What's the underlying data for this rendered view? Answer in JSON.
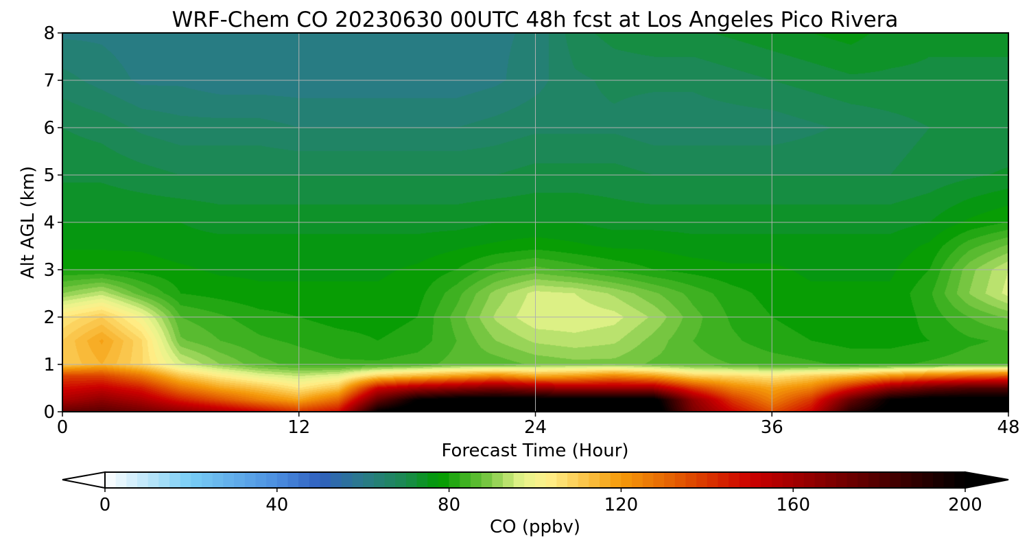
{
  "chart_data": {
    "type": "heatmap",
    "title": "WRF-Chem CO  20230630 00UTC 48h fcst at Los Angeles Pico Rivera",
    "xlabel": "Forecast Time (Hour)",
    "ylabel": "Alt AGL (km)",
    "xlim": [
      0,
      48
    ],
    "ylim": [
      0,
      8
    ],
    "xticks": [
      "0",
      "12",
      "24",
      "36",
      "48"
    ],
    "yticks": [
      "0",
      "1",
      "2",
      "3",
      "4",
      "5",
      "6",
      "7",
      "8"
    ],
    "grid": true,
    "colorbar": {
      "label": "CO  (ppbv)",
      "range": [
        0,
        200
      ],
      "ticks": [
        "0",
        "40",
        "80",
        "120",
        "160",
        "200"
      ],
      "extend": "both",
      "under_color": "#ffffff",
      "over_color": "#000000"
    },
    "colormap": [
      {
        "v": 0,
        "c": "#ffffff"
      },
      {
        "v": 20,
        "c": "#78cdf5"
      },
      {
        "v": 40,
        "c": "#4b8ee0"
      },
      {
        "v": 50,
        "c": "#3060bf"
      },
      {
        "v": 60,
        "c": "#2a7a8a"
      },
      {
        "v": 70,
        "c": "#1a8a4e"
      },
      {
        "v": 78,
        "c": "#009a00"
      },
      {
        "v": 88,
        "c": "#6cc23a"
      },
      {
        "v": 97,
        "c": "#e6f48c"
      },
      {
        "v": 103,
        "c": "#fff08a"
      },
      {
        "v": 120,
        "c": "#f59a0a"
      },
      {
        "v": 135,
        "c": "#e05000"
      },
      {
        "v": 150,
        "c": "#cc0000"
      },
      {
        "v": 170,
        "c": "#7a0000"
      },
      {
        "v": 200,
        "c": "#000000"
      }
    ],
    "x_hours": [
      0,
      2,
      4,
      6,
      8,
      10,
      12,
      14,
      16,
      18,
      20,
      22,
      24,
      26,
      28,
      30,
      32,
      34,
      36,
      38,
      40,
      42,
      44,
      46,
      48
    ],
    "z_km": [
      0,
      0.25,
      0.5,
      0.75,
      1,
      1.5,
      2,
      2.5,
      3,
      3.5,
      4,
      5,
      6,
      7,
      8
    ],
    "values_ppbv": [
      [
        175,
        178,
        172,
        165,
        158,
        150,
        140,
        148,
        200,
        210,
        210,
        210,
        210,
        210,
        210,
        210,
        170,
        150,
        135,
        150,
        190,
        205,
        210,
        210,
        210
      ],
      [
        158,
        165,
        158,
        145,
        135,
        125,
        118,
        130,
        175,
        200,
        205,
        205,
        205,
        205,
        205,
        205,
        165,
        140,
        125,
        140,
        175,
        200,
        205,
        205,
        205
      ],
      [
        148,
        152,
        145,
        128,
        118,
        112,
        105,
        112,
        150,
        160,
        165,
        170,
        165,
        160,
        160,
        160,
        140,
        125,
        118,
        125,
        145,
        165,
        175,
        180,
        180
      ],
      [
        138,
        138,
        128,
        112,
        104,
        98,
        95,
        98,
        110,
        115,
        120,
        125,
        118,
        120,
        125,
        120,
        110,
        108,
        105,
        110,
        115,
        122,
        128,
        132,
        135
      ],
      [
        110,
        115,
        108,
        96,
        90,
        86,
        84,
        83,
        83,
        84,
        86,
        86,
        88,
        89,
        89,
        87,
        86,
        85,
        84,
        83,
        82,
        82,
        83,
        84,
        84
      ],
      [
        110,
        118,
        108,
        88,
        85,
        83,
        82,
        81,
        80,
        81,
        85,
        90,
        93,
        94,
        93,
        89,
        85,
        83,
        81,
        80,
        79,
        79,
        80,
        82,
        83
      ],
      [
        105,
        110,
        100,
        85,
        83,
        81,
        80,
        79,
        79,
        80,
        86,
        93,
        97,
        97,
        96,
        92,
        86,
        82,
        80,
        79,
        78,
        78,
        81,
        85,
        88
      ],
      [
        90,
        94,
        86,
        80,
        79,
        78,
        78,
        78,
        78,
        79,
        84,
        91,
        96,
        95,
        92,
        88,
        84,
        81,
        79,
        78,
        78,
        78,
        82,
        90,
        96
      ],
      [
        80,
        80,
        79,
        78,
        77,
        77,
        77,
        77,
        77,
        78,
        80,
        84,
        86,
        84,
        82,
        80,
        79,
        78,
        78,
        77,
        77,
        77,
        80,
        89,
        95
      ],
      [
        77,
        77,
        77,
        76,
        76,
        76,
        76,
        76,
        76,
        76,
        77,
        78,
        79,
        78,
        77,
        77,
        76,
        76,
        76,
        76,
        76,
        76,
        78,
        84,
        88
      ],
      [
        75,
        75,
        75,
        75,
        74,
        74,
        74,
        74,
        74,
        74,
        74,
        75,
        75,
        75,
        74,
        74,
        74,
        74,
        74,
        74,
        74,
        74,
        75,
        78,
        80
      ],
      [
        72,
        72,
        71,
        70,
        70,
        70,
        70,
        70,
        70,
        70,
        70,
        70,
        71,
        71,
        71,
        70,
        70,
        70,
        70,
        70,
        70,
        70,
        71,
        72,
        73
      ],
      [
        70,
        69,
        67,
        66,
        66,
        66,
        65,
        65,
        65,
        65,
        65,
        66,
        67,
        67,
        67,
        66,
        66,
        66,
        66,
        67,
        68,
        69,
        70,
        70,
        70
      ],
      [
        66,
        64,
        62,
        62,
        61,
        61,
        61,
        61,
        61,
        61,
        61,
        62,
        64,
        67,
        68,
        68,
        68,
        69,
        70,
        71,
        72,
        72,
        72,
        72,
        72
      ],
      [
        62,
        62,
        61,
        61,
        61,
        61,
        61,
        61,
        61,
        61,
        61,
        62,
        63,
        69,
        71,
        72,
        72,
        73,
        74,
        75,
        76,
        74,
        73,
        73,
        73
      ]
    ]
  }
}
